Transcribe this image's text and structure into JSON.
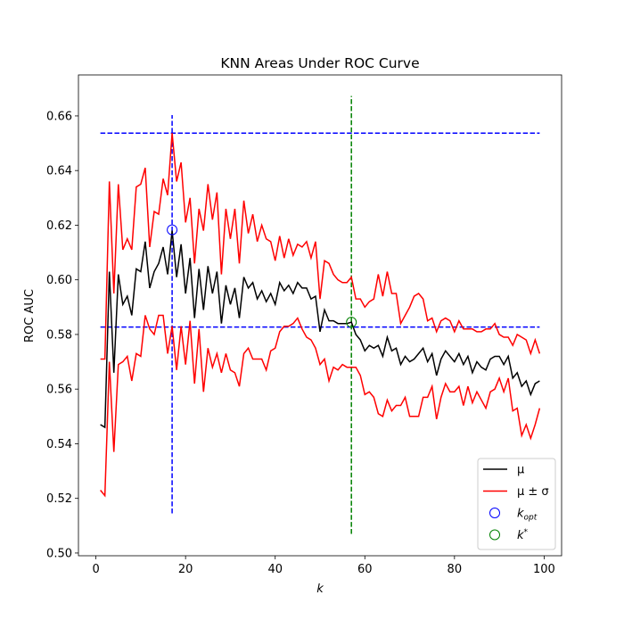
{
  "chart_data": {
    "type": "line",
    "title": "KNN Areas Under ROC Curve",
    "xlabel": "k",
    "ylabel": "ROC AUC",
    "xlim": [
      -3.9,
      103.9
    ],
    "ylim": [
      0.499,
      0.675
    ],
    "xticks": [
      0,
      20,
      40,
      60,
      80,
      100
    ],
    "yticks": [
      {
        "value": 0.5,
        "label": "0.50"
      },
      {
        "value": 0.52,
        "label": "0.52"
      },
      {
        "value": 0.54,
        "label": "0.54"
      },
      {
        "value": 0.56,
        "label": "0.56"
      },
      {
        "value": 0.58,
        "label": "0.58"
      },
      {
        "value": 0.6,
        "label": "0.60"
      },
      {
        "value": 0.62,
        "label": "0.62"
      },
      {
        "value": 0.64,
        "label": "0.64"
      },
      {
        "value": 0.66,
        "label": "0.66"
      }
    ],
    "x": [
      1,
      2,
      3,
      4,
      5,
      6,
      7,
      8,
      9,
      10,
      11,
      12,
      13,
      14,
      15,
      16,
      17,
      18,
      19,
      20,
      21,
      22,
      23,
      24,
      25,
      26,
      27,
      28,
      29,
      30,
      31,
      32,
      33,
      34,
      35,
      36,
      37,
      38,
      39,
      40,
      41,
      42,
      43,
      44,
      45,
      46,
      47,
      48,
      49,
      50,
      51,
      52,
      53,
      54,
      55,
      56,
      57,
      58,
      59,
      60,
      61,
      62,
      63,
      64,
      65,
      66,
      67,
      68,
      69,
      70,
      71,
      72,
      73,
      74,
      75,
      76,
      77,
      78,
      79,
      80,
      81,
      82,
      83,
      84,
      85,
      86,
      87,
      88,
      89,
      90,
      91,
      92,
      93,
      94,
      95,
      96,
      97,
      98,
      99
    ],
    "series": [
      {
        "name": "μ",
        "color": "#000000",
        "values": [
          0.547,
          0.546,
          0.603,
          0.566,
          0.602,
          0.591,
          0.594,
          0.587,
          0.604,
          0.603,
          0.614,
          0.597,
          0.603,
          0.606,
          0.612,
          0.602,
          0.618,
          0.601,
          0.613,
          0.595,
          0.608,
          0.586,
          0.604,
          0.589,
          0.605,
          0.595,
          0.603,
          0.584,
          0.598,
          0.591,
          0.597,
          0.586,
          0.601,
          0.597,
          0.599,
          0.593,
          0.596,
          0.592,
          0.595,
          0.591,
          0.599,
          0.596,
          0.598,
          0.595,
          0.599,
          0.597,
          0.597,
          0.593,
          0.594,
          0.581,
          0.589,
          0.585,
          0.585,
          0.584,
          0.584,
          0.584,
          0.5845,
          0.58,
          0.578,
          0.574,
          0.576,
          0.575,
          0.576,
          0.572,
          0.579,
          0.574,
          0.575,
          0.569,
          0.572,
          0.57,
          0.571,
          0.573,
          0.575,
          0.57,
          0.573,
          0.565,
          0.571,
          0.574,
          0.572,
          0.57,
          0.573,
          0.569,
          0.572,
          0.566,
          0.57,
          0.568,
          0.567,
          0.571,
          0.572,
          0.572,
          0.569,
          0.572,
          0.564,
          0.566,
          0.561,
          0.563,
          0.558,
          0.562,
          0.563
        ]
      },
      {
        "name": "μ ± σ",
        "color": "#ff0000",
        "values": [
          0.571,
          0.571,
          0.636,
          0.595,
          0.635,
          0.611,
          0.615,
          0.611,
          0.634,
          0.635,
          0.641,
          0.612,
          0.625,
          0.624,
          0.637,
          0.631,
          0.6537,
          0.636,
          0.643,
          0.621,
          0.63,
          0.606,
          0.626,
          0.618,
          0.635,
          0.622,
          0.632,
          0.602,
          0.626,
          0.615,
          0.626,
          0.606,
          0.629,
          0.617,
          0.624,
          0.614,
          0.62,
          0.615,
          0.614,
          0.607,
          0.616,
          0.608,
          0.615,
          0.609,
          0.613,
          0.612,
          0.614,
          0.608,
          0.614,
          0.593,
          0.607,
          0.606,
          0.602,
          0.6,
          0.599,
          0.599,
          0.601,
          0.593,
          0.593,
          0.59,
          0.592,
          0.593,
          0.602,
          0.594,
          0.603,
          0.595,
          0.595,
          0.584,
          0.587,
          0.59,
          0.594,
          0.595,
          0.593,
          0.585,
          0.586,
          0.581,
          0.585,
          0.586,
          0.585,
          0.581,
          0.585,
          0.582,
          0.582,
          0.582,
          0.581,
          0.581,
          0.582,
          0.582,
          0.584,
          0.58,
          0.579,
          0.579,
          0.576,
          0.58,
          0.579,
          0.578,
          0.573,
          0.578,
          0.573
        ],
        "lower_values": [
          0.523,
          0.521,
          0.57,
          0.537,
          0.569,
          0.57,
          0.572,
          0.563,
          0.573,
          0.572,
          0.587,
          0.582,
          0.58,
          0.587,
          0.587,
          0.573,
          0.583,
          0.567,
          0.583,
          0.569,
          0.585,
          0.562,
          0.582,
          0.559,
          0.575,
          0.568,
          0.573,
          0.566,
          0.573,
          0.567,
          0.566,
          0.561,
          0.573,
          0.575,
          0.571,
          0.571,
          0.571,
          0.567,
          0.574,
          0.575,
          0.581,
          0.583,
          0.583,
          0.584,
          0.586,
          0.582,
          0.579,
          0.578,
          0.575,
          0.569,
          0.571,
          0.563,
          0.568,
          0.567,
          0.569,
          0.568,
          0.568,
          0.568,
          0.565,
          0.558,
          0.559,
          0.557,
          0.551,
          0.55,
          0.556,
          0.552,
          0.554,
          0.554,
          0.557,
          0.55,
          0.55,
          0.55,
          0.557,
          0.557,
          0.561,
          0.549,
          0.557,
          0.562,
          0.559,
          0.559,
          0.561,
          0.554,
          0.561,
          0.555,
          0.559,
          0.556,
          0.553,
          0.559,
          0.56,
          0.564,
          0.559,
          0.564,
          0.552,
          0.553,
          0.543,
          0.547,
          0.542,
          0.547,
          0.553
        ]
      }
    ],
    "markers": [
      {
        "name": "k",
        "sub": "opt",
        "x": 17,
        "y": 0.6183,
        "color": "#0000ff"
      },
      {
        "name": "k",
        "sup": "*",
        "x": 57,
        "y": 0.5845,
        "color": "#008000"
      }
    ],
    "reference_lines": [
      {
        "orientation": "horizontal",
        "y": 0.6537,
        "x": [
          1,
          99
        ],
        "color": "#0000ff"
      },
      {
        "orientation": "horizontal",
        "y": 0.5827,
        "x": [
          1,
          99
        ],
        "color": "#0000ff"
      },
      {
        "orientation": "vertical",
        "x": 17,
        "y": [
          0.5145,
          0.6603
        ],
        "color": "#0000ff"
      },
      {
        "orientation": "vertical",
        "x": 57,
        "y": [
          0.507,
          0.6673
        ],
        "color": "#008000"
      }
    ],
    "legend": "lower right"
  }
}
